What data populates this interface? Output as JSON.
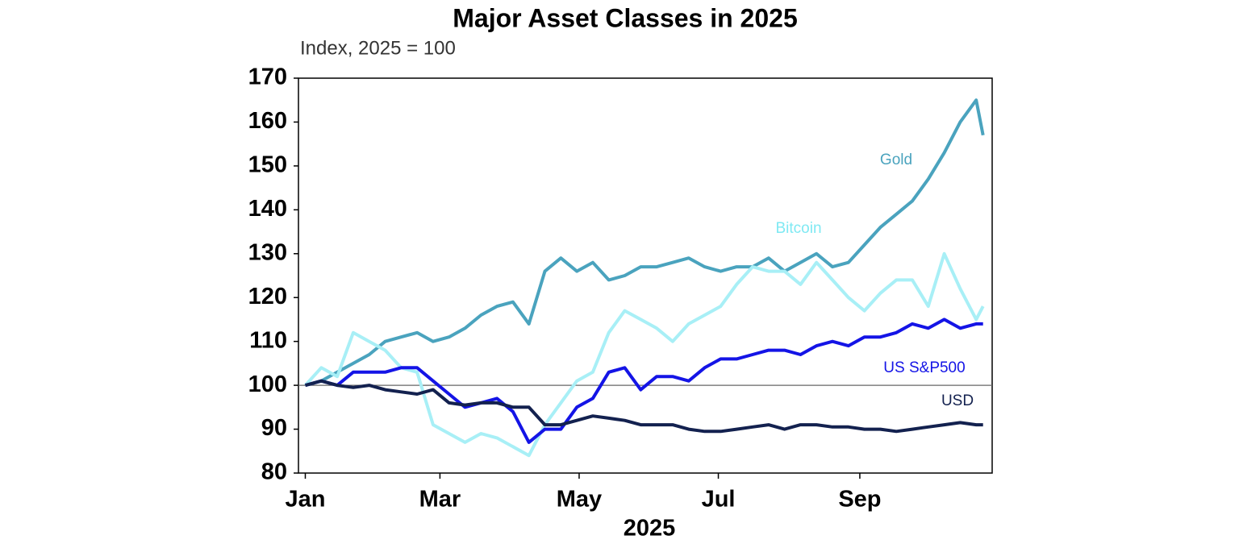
{
  "chart_data": {
    "type": "line",
    "title": "Major Asset Classes in 2025",
    "subtitle": "Index, 2025 = 100",
    "xlabel": "2025",
    "x": [
      0,
      7,
      14,
      21,
      28,
      35,
      42,
      49,
      56,
      63,
      70,
      77,
      84,
      91,
      98,
      105,
      112,
      119,
      126,
      133,
      140,
      147,
      154,
      161,
      168,
      175,
      182,
      189,
      196,
      203,
      210,
      217,
      224,
      231,
      238,
      245,
      252,
      259,
      266,
      273,
      280,
      287,
      294,
      297
    ],
    "xlim": [
      -3,
      301
    ],
    "xticks": [
      {
        "value": 0,
        "label": "Jan"
      },
      {
        "value": 59,
        "label": "Mar"
      },
      {
        "value": 120,
        "label": "May"
      },
      {
        "value": 181,
        "label": "Jul"
      },
      {
        "value": 243,
        "label": "Sep"
      }
    ],
    "ylim": [
      80,
      170
    ],
    "yticks": [
      80,
      90,
      100,
      110,
      120,
      130,
      140,
      150,
      160,
      170
    ],
    "reference_line": 100,
    "series": [
      {
        "name": "Gold",
        "color": "#4aa3be",
        "values": [
          100,
          101,
          103,
          105,
          107,
          110,
          111,
          112,
          110,
          111,
          113,
          116,
          118,
          119,
          114,
          126,
          129,
          126,
          128,
          124,
          125,
          127,
          127,
          128,
          129,
          127,
          126,
          127,
          127,
          129,
          126,
          128,
          130,
          127,
          128,
          132,
          136,
          139,
          142,
          147,
          153,
          160,
          165,
          157
        ]
      },
      {
        "name": "Bitcoin",
        "color": "#a8eff6",
        "values": [
          100,
          104,
          102,
          112,
          110,
          108,
          104,
          103,
          91,
          89,
          87,
          89,
          88,
          86,
          84,
          91,
          96,
          101,
          103,
          112,
          117,
          115,
          113,
          110,
          114,
          116,
          118,
          123,
          127,
          126,
          126,
          123,
          128,
          124,
          120,
          117,
          121,
          124,
          124,
          118,
          130,
          122,
          115,
          118
        ]
      },
      {
        "name": "US S&P500",
        "color": "#1414e6",
        "values": [
          100,
          101,
          100,
          103,
          103,
          103,
          104,
          104,
          101,
          98,
          95,
          96,
          97,
          94,
          87,
          90,
          90,
          95,
          97,
          103,
          104,
          99,
          102,
          102,
          101,
          104,
          106,
          106,
          107,
          108,
          108,
          107,
          109,
          110,
          109,
          111,
          111,
          112,
          114,
          113,
          115,
          113,
          114,
          114
        ]
      },
      {
        "name": "USD",
        "color": "#13214f",
        "values": [
          100,
          101,
          100,
          99.5,
          100,
          99,
          98.5,
          98,
          99,
          96,
          95.5,
          96,
          96,
          95,
          95,
          91,
          91,
          92,
          93,
          92.5,
          92,
          91,
          91,
          91,
          90,
          89.5,
          89.5,
          90,
          90.5,
          91,
          90,
          91,
          91,
          90.5,
          90.5,
          90,
          90,
          89.5,
          90,
          90.5,
          91,
          91.5,
          91,
          91
        ]
      }
    ]
  }
}
